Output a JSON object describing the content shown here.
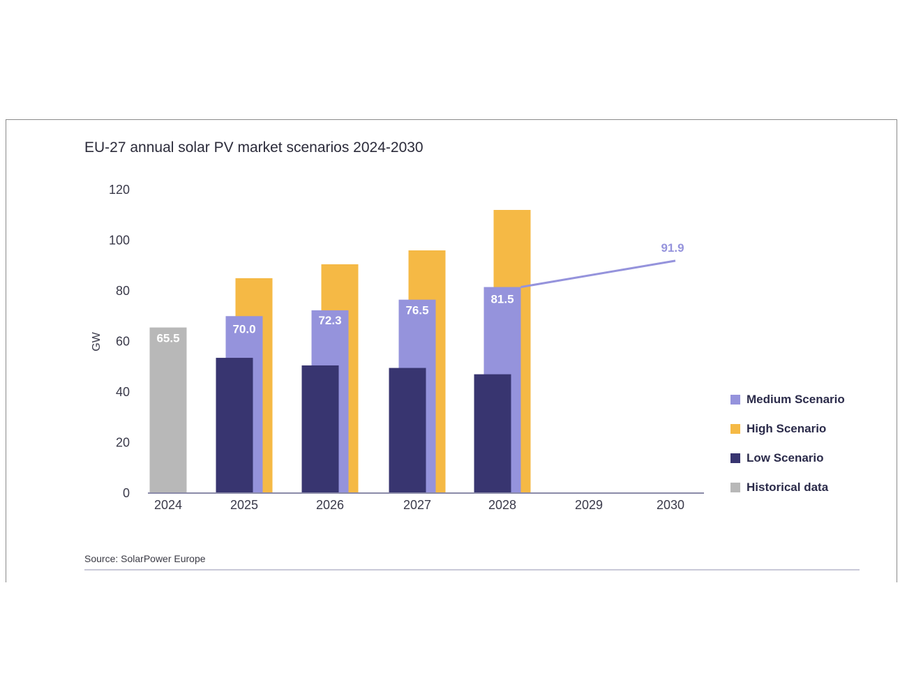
{
  "chart_data": {
    "type": "bar",
    "title": "EU-27 annual solar PV market scenarios 2024-2030",
    "ylabel": "GW",
    "xlabel": "",
    "ylim": [
      0,
      120
    ],
    "yticks": [
      0,
      20,
      40,
      60,
      80,
      100,
      120
    ],
    "categories": [
      "2024",
      "2025",
      "2026",
      "2027",
      "2028",
      "2029",
      "2030"
    ],
    "series": [
      {
        "name": "Historical data",
        "color": "#b8b8b8",
        "values": [
          65.5,
          null,
          null,
          null,
          null,
          null,
          null
        ]
      },
      {
        "name": "Low Scenario",
        "color": "#383570",
        "values": [
          null,
          53.5,
          50.5,
          49.5,
          47,
          null,
          null
        ]
      },
      {
        "name": "Medium Scenario",
        "color": "#9593dc",
        "values": [
          null,
          70.0,
          72.3,
          76.5,
          81.5,
          null,
          91.9
        ]
      },
      {
        "name": "High Scenario",
        "color": "#f5b945",
        "values": [
          null,
          85,
          90.5,
          96,
          112,
          null,
          null
        ]
      }
    ],
    "data_labels": {
      "historical_2024": "65.5",
      "medium_2025": "70.0",
      "medium_2026": "72.3",
      "medium_2027": "76.5",
      "medium_2028": "81.5",
      "medium_2030": "91.9"
    },
    "legend": [
      {
        "label": "Medium Scenario",
        "color": "#9593dc"
      },
      {
        "label": "High Scenario",
        "color": "#f5b945"
      },
      {
        "label": "Low Scenario",
        "color": "#383570"
      },
      {
        "label": "Historical data",
        "color": "#b8b8b8"
      }
    ],
    "legend_position": "right",
    "grid": false
  },
  "source": "Source: SolarPower Europe"
}
